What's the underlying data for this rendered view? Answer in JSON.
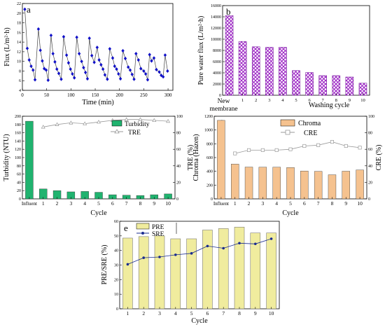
{
  "chart_data": [
    {
      "panel": "a",
      "type": "line",
      "xlabel": "Time (min)",
      "ylabel": "Flux (L/m²·h)",
      "xlim": [
        0,
        310
      ],
      "ylim": [
        4,
        22
      ],
      "xticks": [
        0,
        50,
        100,
        150,
        200,
        250,
        300
      ],
      "yticks": [
        4,
        6,
        8,
        10,
        12,
        14,
        16,
        18,
        20,
        22
      ],
      "series": [
        {
          "color": "#1010c8",
          "marker": "diamond",
          "x": [
            5,
            10,
            14,
            18,
            22,
            26,
            33,
            37,
            41,
            45,
            49,
            53,
            59,
            63,
            67,
            71,
            75,
            80,
            85,
            91,
            95,
            99,
            103,
            107,
            112,
            117,
            122,
            126,
            130,
            134,
            138,
            143,
            148,
            154,
            158,
            162,
            166,
            170,
            175,
            180,
            186,
            190,
            194,
            198,
            202,
            207,
            212,
            218,
            222,
            226,
            230,
            234,
            239,
            244,
            250,
            254,
            258,
            262,
            266,
            271,
            276,
            282,
            286,
            290,
            294,
            299
          ],
          "y": [
            20.8,
            12.7,
            10.3,
            9.0,
            8.2,
            6.2,
            16.7,
            12.3,
            10.1,
            8.5,
            8.2,
            6.1,
            15.4,
            11.6,
            9.9,
            8.4,
            7.5,
            6.3,
            15.1,
            11.3,
            9.7,
            8.4,
            7.4,
            6.6,
            15.0,
            11.6,
            10.0,
            8.7,
            7.7,
            6.4,
            14.8,
            11.2,
            9.8,
            12.9,
            10.3,
            9.3,
            8.4,
            7.2,
            6.3,
            12.6,
            10.7,
            9.0,
            8.4,
            7.4,
            6.4,
            12.2,
            10.6,
            8.8,
            8.2,
            7.3,
            6.3,
            11.6,
            10.3,
            8.5,
            8.0,
            7.4,
            6.2,
            11.4,
            10.1,
            10.7,
            8.3,
            7.8,
            7.1,
            6.8,
            11.3,
            8.0
          ]
        }
      ]
    },
    {
      "panel": "b",
      "type": "bar",
      "xlabel": "Washing cycle",
      "ylabel": "Pure water flux (L/m²·h)",
      "ylim": [
        0,
        16000
      ],
      "yticks": [
        0,
        2000,
        4000,
        6000,
        8000,
        10000,
        12000,
        14000,
        16000
      ],
      "categories": [
        "New membrane",
        "1",
        "2",
        "3",
        "4",
        "5",
        "6",
        "7",
        "8",
        "9",
        "10"
      ],
      "values": [
        14200,
        9600,
        8650,
        8550,
        8550,
        4400,
        4050,
        3500,
        3500,
        3250,
        2150
      ]
    },
    {
      "panel": "c",
      "type": "bar",
      "xlabel": "Cycle",
      "ylabel": "Turbidity (NTU)",
      "y2label": "TRE (%)",
      "ylim": [
        0,
        200
      ],
      "y2lim": [
        0,
        100
      ],
      "yticks": [
        0,
        20,
        40,
        60,
        80,
        100,
        120,
        140,
        160,
        180,
        200
      ],
      "y2ticks": [
        0,
        20,
        40,
        60,
        80,
        100
      ],
      "categories": [
        "Influent",
        "1",
        "2",
        "3",
        "4",
        "5",
        "6",
        "7",
        "8",
        "9",
        "10"
      ],
      "series": [
        {
          "name": "Turbidity",
          "type": "bar",
          "values": [
            188,
            24,
            20,
            17,
            18,
            16,
            10,
            9,
            8,
            10,
            12
          ]
        },
        {
          "name": "TRE",
          "type": "line",
          "values": [
            null,
            87,
            90,
            92,
            91,
            93,
            95,
            96,
            96,
            95,
            94
          ]
        }
      ]
    },
    {
      "panel": "d",
      "type": "bar",
      "xlabel": "Cycle",
      "ylabel": "Chroma (Hazen)",
      "y2label": "CRE (%)",
      "ylim": [
        0,
        1200
      ],
      "y2lim": [
        0,
        100
      ],
      "yticks": [
        0,
        200,
        400,
        600,
        800,
        1000,
        1200
      ],
      "y2ticks": [
        0,
        20,
        40,
        60,
        80,
        100
      ],
      "categories": [
        "Influent",
        "1",
        "2",
        "3",
        "4",
        "5",
        "6",
        "7",
        "8",
        "9",
        "10"
      ],
      "series": [
        {
          "name": "Chroma",
          "type": "bar",
          "values": [
            1140,
            505,
            462,
            460,
            460,
            455,
            405,
            400,
            350,
            402,
            420
          ]
        },
        {
          "name": "CRE",
          "type": "line",
          "values": [
            null,
            55,
            59,
            59,
            59,
            60,
            64,
            65,
            69,
            64,
            62
          ]
        }
      ]
    },
    {
      "panel": "e",
      "type": "bar",
      "xlabel": "Cycle",
      "ylabel": "PRE/SRE (%)",
      "ylim": [
        0,
        60
      ],
      "yticks": [
        0,
        10,
        20,
        30,
        40,
        50,
        60
      ],
      "categories": [
        "1",
        "2",
        "3",
        "4",
        "5",
        "6",
        "7",
        "8",
        "9",
        "10"
      ],
      "series": [
        {
          "name": "PRE",
          "type": "bar",
          "values": [
            48.5,
            49.5,
            50,
            48,
            48,
            54,
            55,
            56,
            52,
            52
          ]
        },
        {
          "name": "SRE",
          "type": "line",
          "values": [
            30.5,
            35,
            35.5,
            37,
            38,
            43,
            41.5,
            45,
            44.5,
            48
          ]
        }
      ]
    }
  ],
  "colors": {
    "panel_a_line": "#1010c8",
    "panel_b_bar": "#9a1fc3",
    "panel_c_bar": "#20b36f",
    "panel_d_bar": "#f5c28f",
    "panel_e_bar": "#f0ec9e",
    "secondary_line": "#9a9a9a",
    "panel_e_line": "#1a2c8f"
  }
}
